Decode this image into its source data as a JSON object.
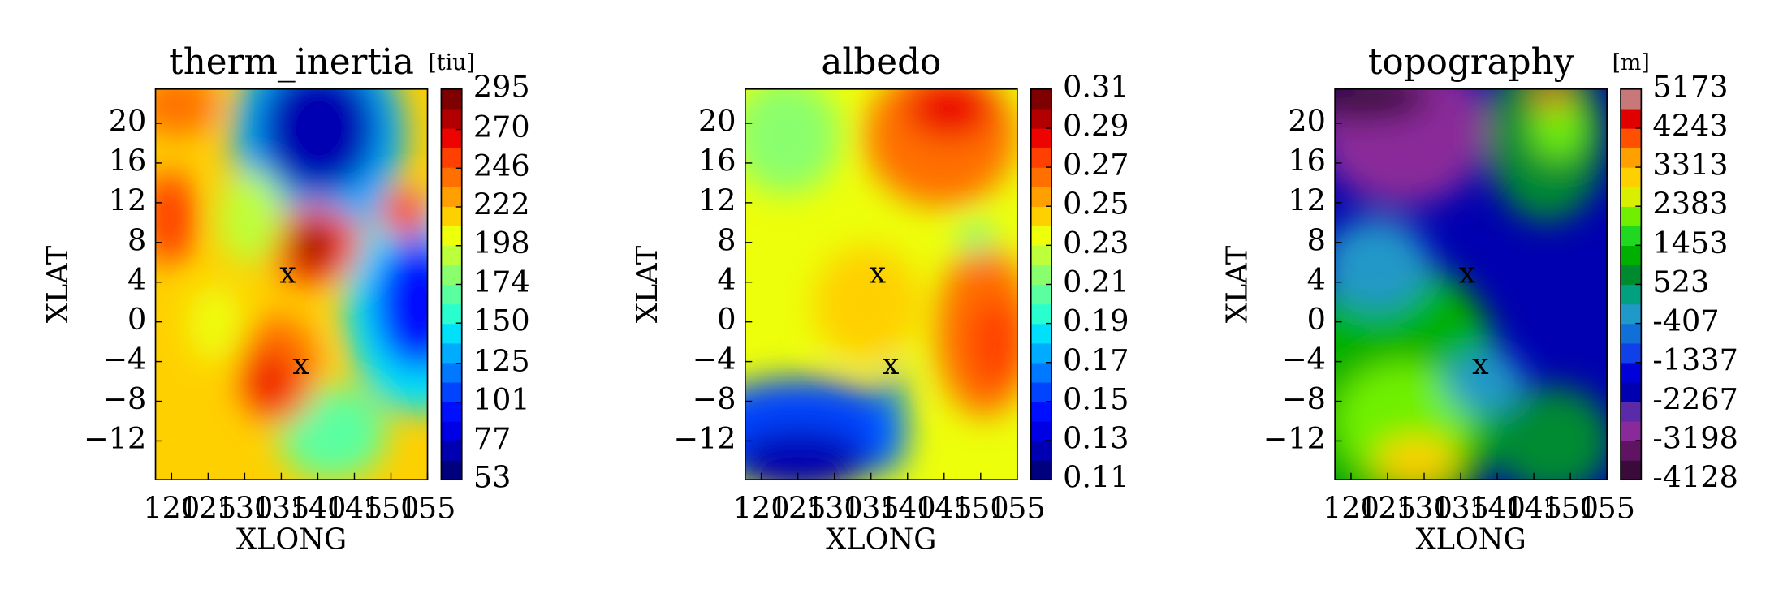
{
  "chart_data": [
    {
      "type": "contour",
      "title": "therm_inertia",
      "unit": "[tiu]",
      "xlabel": "XLONG",
      "ylabel": "XLAT",
      "xlim": [
        117.8,
        155
      ],
      "xticks": [
        120,
        125,
        130,
        135,
        140,
        145,
        150,
        155
      ],
      "ylim": [
        -15.9,
        23.45
      ],
      "yticks": [
        {
          "value": -12,
          "label": "−12"
        },
        {
          "value": -8,
          "label": "−8"
        },
        {
          "value": -4,
          "label": "−4"
        },
        0,
        4,
        8,
        12,
        16,
        20
      ],
      "clim": [
        53,
        295
      ],
      "cticks": [
        53,
        77,
        101,
        125,
        150,
        174,
        198,
        222,
        246,
        270,
        295
      ],
      "colors": [
        "#00007f",
        "#0000b2",
        "#0000e5",
        "#0010ff",
        "#0044ff",
        "#0078ff",
        "#00acff",
        "#00e0fb",
        "#29ffce",
        "#5affa0",
        "#8aff6d",
        "#bdff3a",
        "#edff0a",
        "#ffd000",
        "#ffa000",
        "#ff7000",
        "#ff4000",
        "#ed0400",
        "#b20000",
        "#7f0000"
      ],
      "markers": [
        {
          "label": "x",
          "x": 135.9,
          "y": 4.7
        },
        {
          "label": "x",
          "x": 137.7,
          "y": -4.5
        }
      ]
    },
    {
      "type": "contour",
      "title": "albedo",
      "xlabel": "XLONG",
      "ylabel": "XLAT",
      "xlim": [
        117.8,
        155
      ],
      "xticks": [
        120,
        125,
        130,
        135,
        140,
        145,
        150,
        155
      ],
      "ylim": [
        -15.9,
        23.45
      ],
      "yticks": [
        {
          "value": -12,
          "label": "−12"
        },
        {
          "value": -8,
          "label": "−8"
        },
        {
          "value": -4,
          "label": "−4"
        },
        0,
        4,
        8,
        12,
        16,
        20
      ],
      "clim": [
        0.11,
        0.31
      ],
      "cticks": [
        0.11,
        0.13,
        0.15,
        0.17,
        0.19,
        0.21,
        0.23,
        0.25,
        0.27,
        0.29,
        0.31
      ],
      "colors": [
        "#00007f",
        "#0000b2",
        "#0000e5",
        "#0010ff",
        "#0044ff",
        "#0078ff",
        "#00acff",
        "#00e0fb",
        "#29ffce",
        "#5affa0",
        "#8aff6d",
        "#bdff3a",
        "#edff0a",
        "#ffd000",
        "#ffa000",
        "#ff7000",
        "#ff4000",
        "#ed0400",
        "#b20000",
        "#7f0000"
      ],
      "markers": [
        {
          "label": "x",
          "x": 135.9,
          "y": 4.7
        },
        {
          "label": "x",
          "x": 137.7,
          "y": -4.5
        }
      ]
    },
    {
      "type": "contour",
      "title": "topography",
      "unit": "[m]",
      "xlabel": "XLONG",
      "ylabel": "XLAT",
      "xlim": [
        117.8,
        155
      ],
      "xticks": [
        120,
        125,
        130,
        135,
        140,
        145,
        150,
        155
      ],
      "ylim": [
        -15.9,
        23.45
      ],
      "yticks": [
        {
          "value": -12,
          "label": "−12"
        },
        {
          "value": -8,
          "label": "−8"
        },
        {
          "value": -4,
          "label": "−4"
        },
        0,
        4,
        8,
        12,
        16,
        20
      ],
      "clim": [
        -4128,
        5173
      ],
      "cticks": [
        -4128,
        -3198,
        -2267,
        -1337,
        -407,
        523,
        1453,
        2383,
        3313,
        4243,
        5173
      ],
      "colors": [
        "#3a0a3a",
        "#5e1460",
        "#8a2a9a",
        "#5a2aa8",
        "#0000b0",
        "#0000d8",
        "#1040e8",
        "#1070d8",
        "#2098c8",
        "#00a080",
        "#008a30",
        "#00b000",
        "#20d820",
        "#70f000",
        "#d8f000",
        "#ffd000",
        "#ffa000",
        "#ff5000",
        "#e00000",
        "#c87878"
      ],
      "markers": [
        {
          "label": "x",
          "x": 135.9,
          "y": 4.7
        },
        {
          "label": "x",
          "x": 137.7,
          "y": -4.5
        }
      ]
    }
  ]
}
